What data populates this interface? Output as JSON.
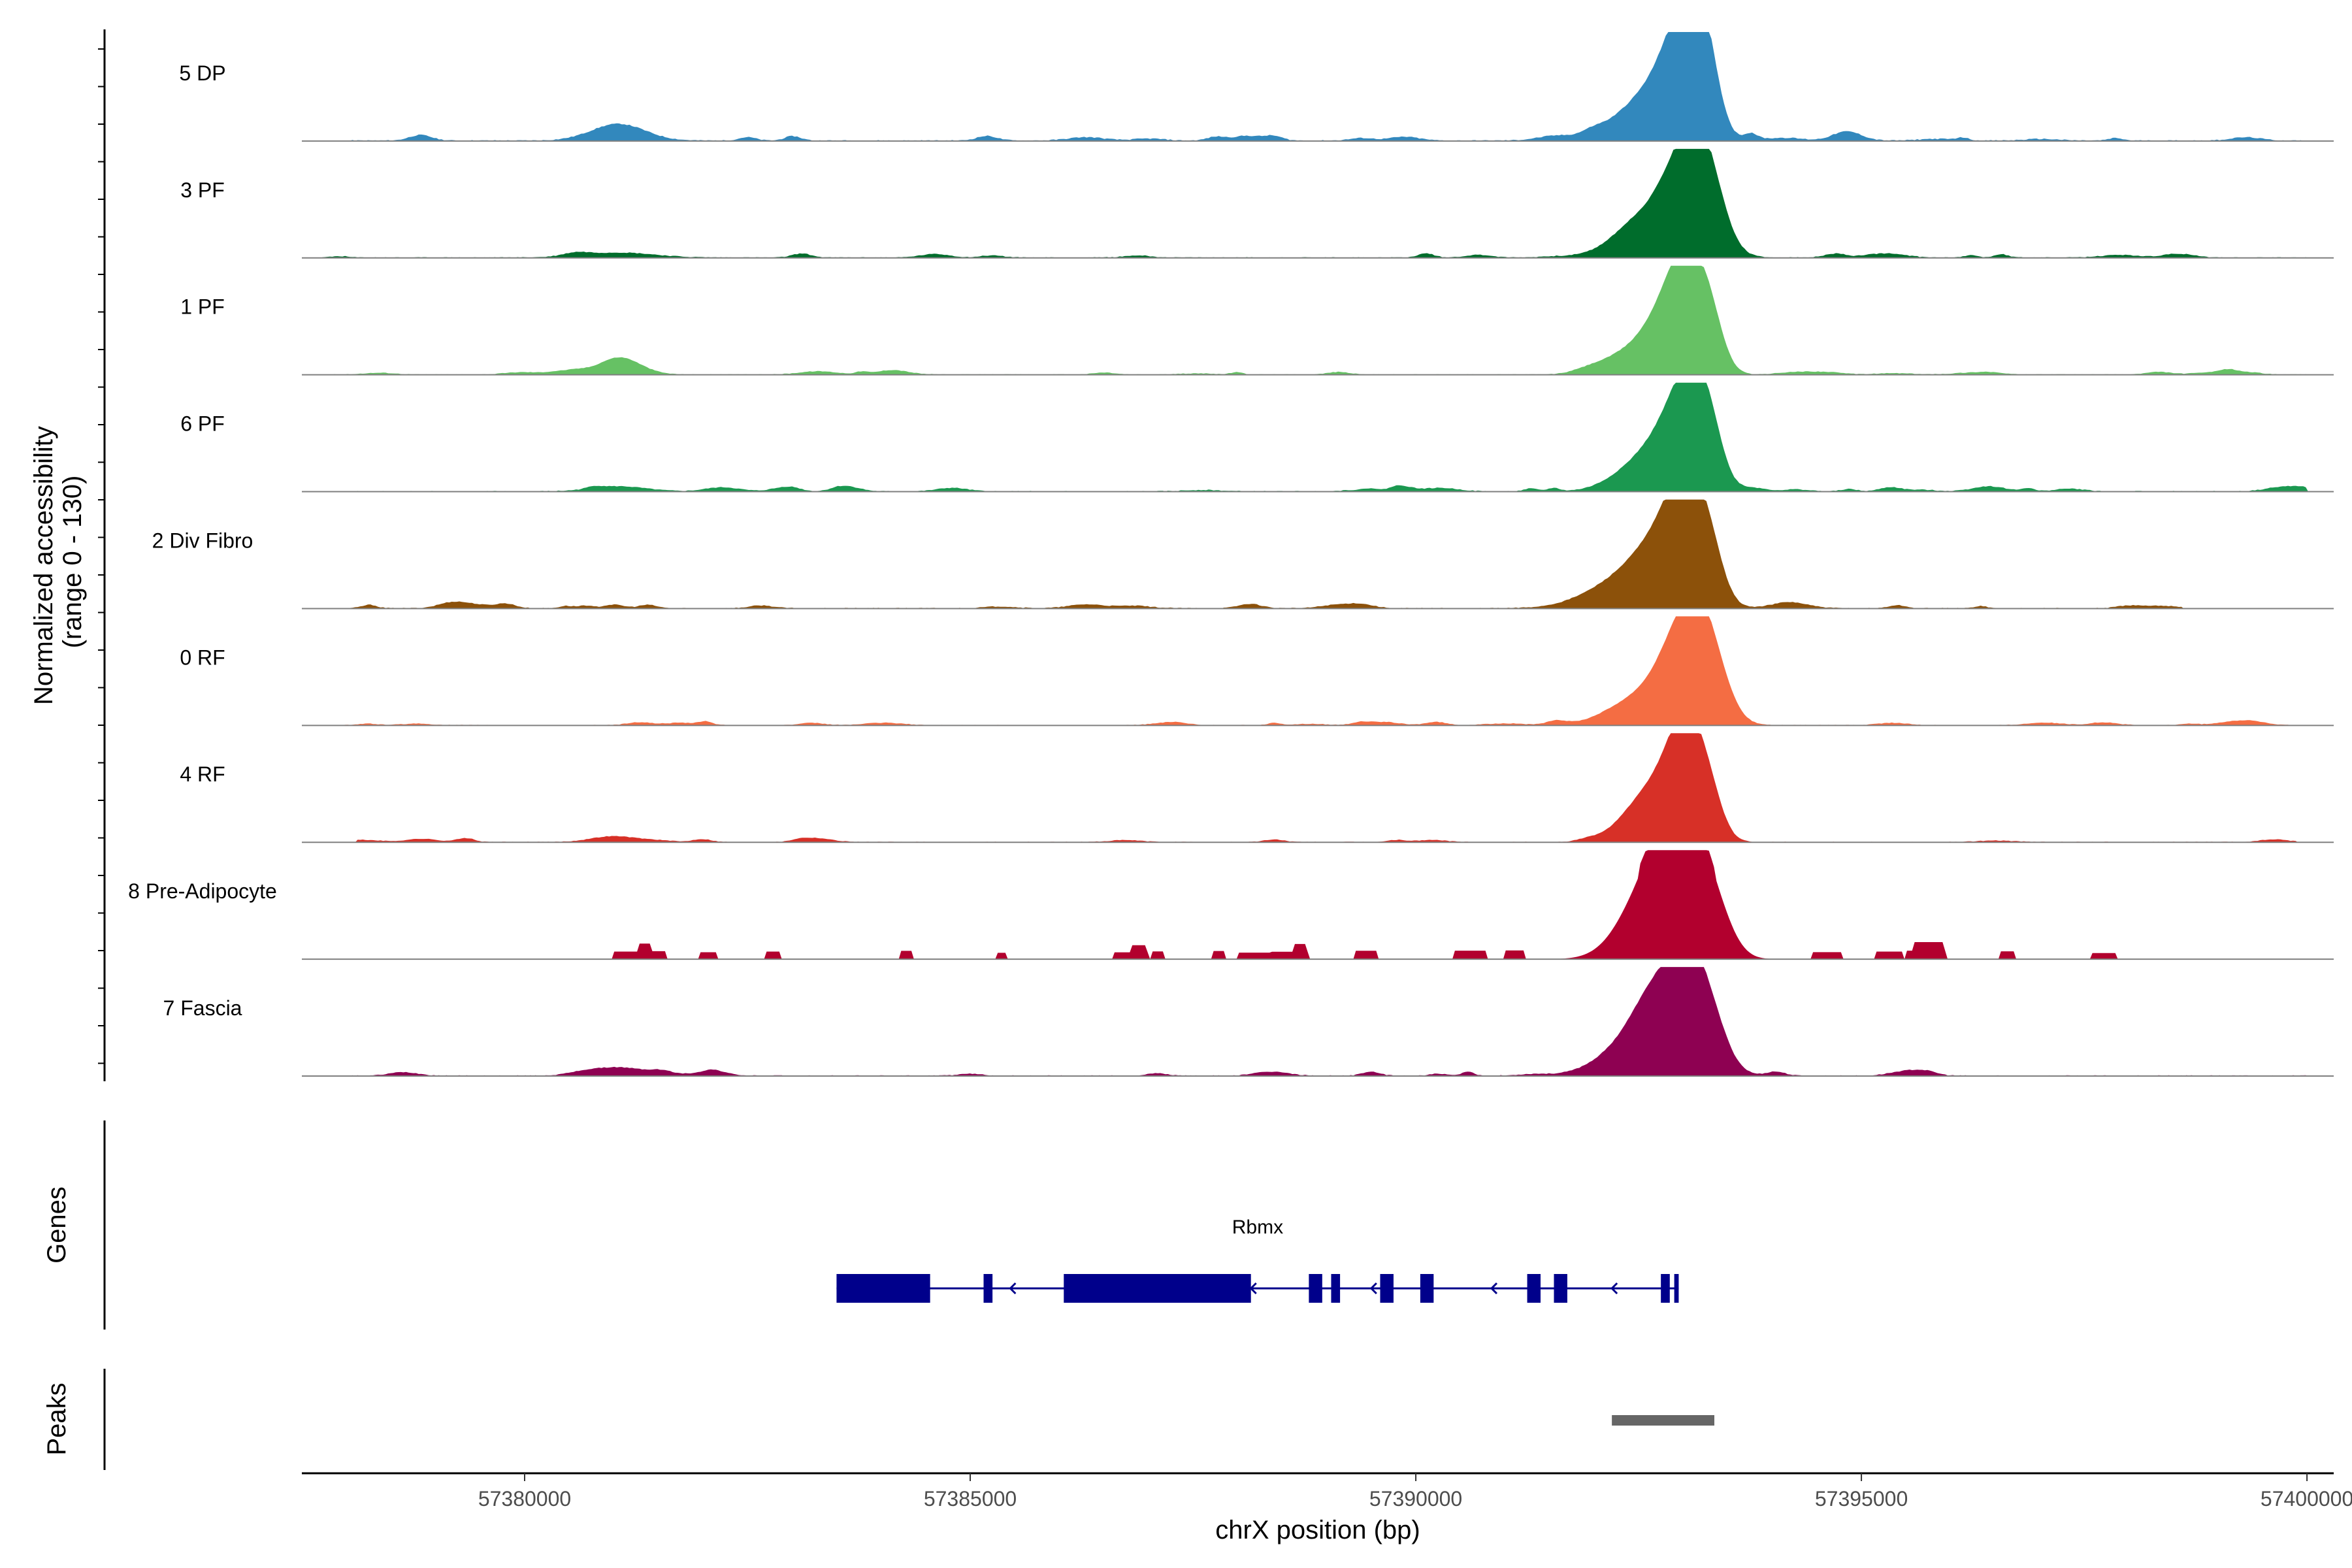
{
  "chart_data": {
    "type": "area",
    "title": "",
    "xlabel": "chrX position (bp)",
    "ylabel": "Normalized accessibility\n(range 0 - 130)",
    "ylabel_lines": [
      "Normalized accessibility",
      "(range 0 - 130)"
    ],
    "ylim": [
      0,
      130
    ],
    "xlim": [
      57377500,
      57400300
    ],
    "x_ticks": [
      57380000,
      57385000,
      57390000,
      57395000,
      57400000
    ],
    "x_tick_labels": [
      "57380000",
      "57385000",
      "57390000",
      "57395000",
      "57400000"
    ],
    "tracks": [
      {
        "name": "5 DP",
        "color": "#3288bd",
        "peaks": [
          [
            57381050,
            20,
            300
          ],
          [
            57392450,
            35,
            300
          ],
          [
            57392850,
            55,
            250
          ],
          [
            57393050,
            105,
            200
          ],
          [
            57393250,
            75,
            150
          ]
        ],
        "noise": 5,
        "span": [
          57378000,
          57399950
        ],
        "seed": 11
      },
      {
        "name": "3 PF",
        "color": "#006d2c",
        "peaks": [
          [
            57381050,
            6,
            400
          ],
          [
            57392600,
            45,
            350
          ],
          [
            57393050,
            95,
            250
          ],
          [
            57393250,
            70,
            200
          ]
        ],
        "noise": 4,
        "span": [
          57377700,
          57400000
        ],
        "seed": 23
      },
      {
        "name": "1 PF",
        "color": "#66c164",
        "peaks": [
          [
            57381050,
            16,
            250
          ],
          [
            57392400,
            25,
            300
          ],
          [
            57392850,
            60,
            250
          ],
          [
            57393050,
            95,
            200
          ],
          [
            57393300,
            50,
            150
          ]
        ],
        "noise": 3,
        "span": [
          57377700,
          57400000
        ],
        "seed": 37
      },
      {
        "name": "6 PF",
        "color": "#1b9850",
        "peaks": [
          [
            57381050,
            6,
            300
          ],
          [
            57392500,
            30,
            300
          ],
          [
            57392900,
            60,
            250
          ],
          [
            57393100,
            90,
            200
          ],
          [
            57393300,
            45,
            150
          ]
        ],
        "noise": 4,
        "span": [
          57378000,
          57400000
        ],
        "seed": 41
      },
      {
        "name": "2 Div Fibro",
        "color": "#8c510a",
        "peaks": [
          [
            57392300,
            30,
            400
          ],
          [
            57392750,
            60,
            300
          ],
          [
            57393050,
            115,
            220
          ],
          [
            57393300,
            40,
            150
          ],
          [
            57394200,
            6,
            200
          ]
        ],
        "noise": 4,
        "span": [
          57378000,
          57398600
        ],
        "seed": 53
      },
      {
        "name": "0 RF",
        "color": "#f46d43",
        "peaks": [
          [
            57392300,
            15,
            300
          ],
          [
            57392700,
            30,
            300
          ],
          [
            57393050,
            110,
            250
          ],
          [
            57393300,
            55,
            200
          ]
        ],
        "noise": 3,
        "span": [
          57377700,
          57399800
        ],
        "seed": 61
      },
      {
        "name": "4 RF",
        "color": "#d73027",
        "peaks": [
          [
            57381000,
            7,
            250
          ],
          [
            57392500,
            40,
            250
          ],
          [
            57392800,
            50,
            200
          ],
          [
            57393050,
            120,
            180
          ],
          [
            57393300,
            45,
            150
          ]
        ],
        "noise": 3,
        "span": [
          57378100,
          57399900
        ],
        "seed": 71
      },
      {
        "name": "8 Pre-Adipocyte",
        "color": "#b2002e",
        "peaks": [
          [
            57392550,
            60,
            300
          ],
          [
            57392800,
            70,
            250
          ],
          [
            57393050,
            110,
            220
          ],
          [
            57393350,
            50,
            200
          ]
        ],
        "noise": 0,
        "span": [
          57379600,
          57400000
        ],
        "seed": 83
      },
      {
        "name": "7 Fascia",
        "color": "#8e0152",
        "peaks": [
          [
            57381050,
            10,
            300
          ],
          [
            57392400,
            35,
            350
          ],
          [
            57392700,
            70,
            250
          ],
          [
            57393050,
            100,
            220
          ],
          [
            57393300,
            50,
            200
          ]
        ],
        "noise": 4,
        "span": [
          57378000,
          57400000
        ],
        "seed": 97
      }
    ],
    "genes": {
      "panel_label": "Genes",
      "gene_name": "Rbmx",
      "strand": "-",
      "start": 57383500,
      "end": 57392950,
      "exons": [
        [
          57383500,
          57384550
        ],
        [
          57385150,
          57385250
        ],
        [
          57386050,
          57388150
        ],
        [
          57388800,
          57388950
        ],
        [
          57389050,
          57389150
        ],
        [
          57389600,
          57389750
        ],
        [
          57390050,
          57390200
        ],
        [
          57391250,
          57391400
        ],
        [
          57391550,
          57391700
        ],
        [
          57392750,
          57392850
        ],
        [
          57392900,
          57392950
        ]
      ]
    },
    "peaks_panel": {
      "panel_label": "Peaks",
      "regions": [
        [
          57392200,
          57393350
        ]
      ],
      "color": "#666666"
    }
  }
}
